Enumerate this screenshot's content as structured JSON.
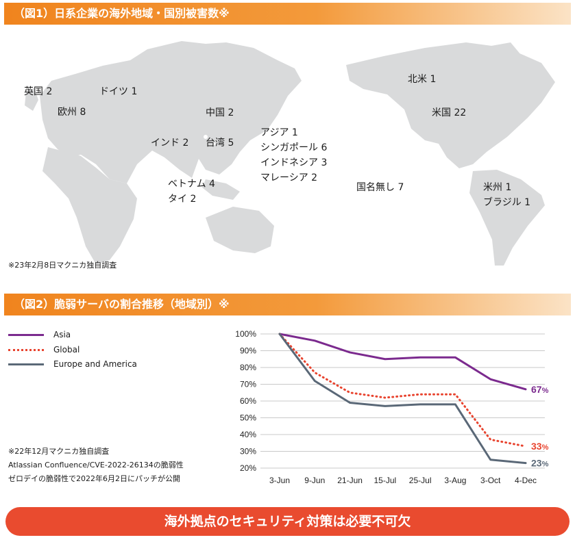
{
  "figure1": {
    "header": "（図1）日系企業の海外地域・国別被害数※",
    "note": "※23年2月8日マクニカ独自調査",
    "labels": {
      "uk": "英国 2",
      "germany": "ドイツ 1",
      "europe": "欧州 8",
      "china": "中国 2",
      "india": "インド 2",
      "taiwan": "台湾 5",
      "asia": "アジア 1",
      "singapore": "シンガポール 6",
      "indonesia": "インドネシア 3",
      "malaysia": "マレーシア 2",
      "vietnam": "ベトナム 4",
      "thailand": "タイ 2",
      "north_america": "北米 1",
      "usa": "米国 22",
      "no_country": "国名無し 7",
      "americas": "米州 1",
      "brazil": "ブラジル 1"
    }
  },
  "figure2": {
    "header": "（図2）脆弱サーバの割合推移（地域別）※",
    "notes": [
      "※22年12月マクニカ独自調査",
      "Atlassian Confluence/CVE-2022-26134の脆弱性",
      "ゼロデイの脆弱性で2022年6月2日にパッチが公開"
    ]
  },
  "chart_data": {
    "type": "line",
    "categories": [
      "3-Jun",
      "9-Jun",
      "21-Jun",
      "15-Jul",
      "25-Jul",
      "3-Aug",
      "3-Oct",
      "4-Dec"
    ],
    "yticks": [
      "100%",
      "90%",
      "80%",
      "70%",
      "60%",
      "50%",
      "40%",
      "30%",
      "20%"
    ],
    "ylim": [
      20,
      100
    ],
    "grid": true,
    "legend_position": "top-left",
    "series": [
      {
        "name": "Asia",
        "values": [
          100,
          96,
          89,
          85,
          86,
          86,
          73,
          67
        ],
        "end_label": "67",
        "color": "#7b2a8e",
        "style": "solid"
      },
      {
        "name": "Global",
        "values": [
          100,
          77,
          65,
          62,
          64,
          64,
          37,
          33
        ],
        "end_label": "33",
        "color": "#e8432e",
        "style": "dotted"
      },
      {
        "name": "Europe and America",
        "values": [
          100,
          72,
          59,
          57,
          58,
          58,
          25,
          23
        ],
        "end_label": "23",
        "color": "#5a6877",
        "style": "solid"
      }
    ],
    "percent_sign": "%"
  },
  "banner": {
    "text": "海外拠点のセキュリティ対策は必要不可欠"
  },
  "colors": {
    "header_orange": "#f0841e",
    "map_gray": "#dcdcdc",
    "banner_red": "#e94b2f"
  }
}
